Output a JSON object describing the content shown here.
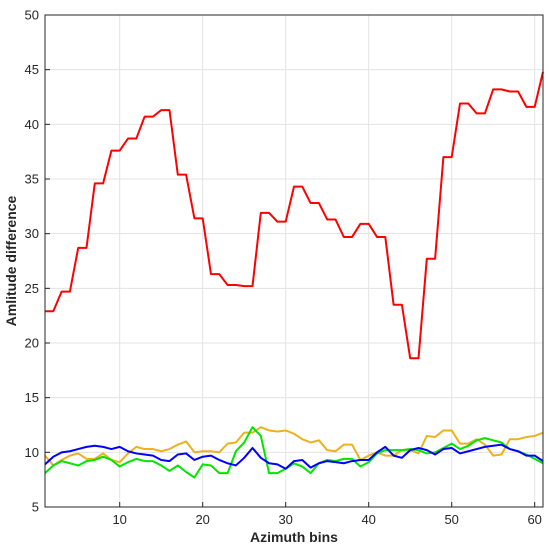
{
  "chart_data": {
    "type": "line",
    "title": "",
    "xlabel": "Azimuth bins",
    "ylabel": "Amlitude difference",
    "xlim": [
      1,
      61
    ],
    "ylim": [
      5,
      50
    ],
    "xticks": [
      10,
      20,
      30,
      40,
      50,
      60
    ],
    "yticks": [
      5,
      10,
      15,
      20,
      25,
      30,
      35,
      40,
      45,
      50
    ],
    "grid": true,
    "legend": "none",
    "x": [
      1,
      2,
      3,
      4,
      5,
      6,
      7,
      8,
      9,
      10,
      11,
      12,
      13,
      14,
      15,
      16,
      17,
      18,
      19,
      20,
      21,
      22,
      23,
      24,
      25,
      26,
      27,
      28,
      29,
      30,
      31,
      32,
      33,
      34,
      35,
      36,
      37,
      38,
      39,
      40,
      41,
      42,
      43,
      44,
      45,
      46,
      47,
      48,
      49,
      50,
      51,
      52,
      53,
      54,
      55,
      56,
      57,
      58,
      59,
      60,
      61
    ],
    "series": [
      {
        "color": "#ff0000",
        "values": [
          22.9,
          22.9,
          24.7,
          24.7,
          28.7,
          28.7,
          34.6,
          34.6,
          37.6,
          37.6,
          38.7,
          38.7,
          40.7,
          40.7,
          41.3,
          41.3,
          35.4,
          35.4,
          31.4,
          31.4,
          26.3,
          26.3,
          25.3,
          25.3,
          25.2,
          25.2,
          31.9,
          31.9,
          31.1,
          31.1,
          34.3,
          34.3,
          32.8,
          32.8,
          31.3,
          31.3,
          29.7,
          29.7,
          30.9,
          30.9,
          29.7,
          29.7,
          23.5,
          23.5,
          18.6,
          18.6,
          27.7,
          27.7,
          37.0,
          37.0,
          41.9,
          41.9,
          41.0,
          41.0,
          43.2,
          43.2,
          43.0,
          43.0,
          41.6,
          41.6,
          44.8
        ]
      },
      {
        "color": "#edb120",
        "values": [
          9.7,
          8.8,
          9.3,
          9.7,
          9.9,
          9.4,
          9.4,
          9.9,
          9.3,
          9.1,
          9.9,
          10.5,
          10.3,
          10.3,
          10.1,
          10.3,
          10.7,
          11.0,
          10.0,
          10.1,
          10.1,
          10.0,
          10.8,
          10.9,
          11.8,
          11.8,
          12.3,
          12.0,
          11.9,
          12.0,
          11.7,
          11.2,
          10.9,
          11.1,
          10.2,
          10.1,
          10.7,
          10.7,
          9.3,
          9.7,
          10.0,
          9.7,
          9.7,
          10.2,
          10.2,
          9.9,
          11.5,
          11.4,
          12.0,
          12.0,
          10.8,
          10.8,
          11.2,
          10.7,
          9.7,
          9.8,
          11.2,
          11.2,
          11.4,
          11.5,
          11.8
        ]
      },
      {
        "color": "#00e600",
        "values": [
          8.1,
          8.8,
          9.2,
          9.0,
          8.8,
          9.2,
          9.3,
          9.6,
          9.3,
          8.7,
          9.1,
          9.4,
          9.2,
          9.2,
          8.8,
          8.3,
          8.8,
          8.2,
          7.7,
          8.9,
          8.8,
          8.1,
          8.1,
          10.1,
          10.9,
          12.3,
          11.5,
          8.1,
          8.1,
          8.5,
          9.0,
          8.7,
          8.1,
          9.0,
          9.3,
          9.2,
          9.4,
          9.4,
          8.7,
          9.1,
          9.9,
          10.2,
          10.2,
          10.2,
          10.3,
          10.2,
          9.9,
          10.0,
          10.4,
          10.8,
          10.3,
          10.6,
          11.1,
          11.3,
          11.1,
          10.9,
          10.3,
          10.1,
          9.8,
          9.4,
          9.0
        ]
      },
      {
        "color": "#0000ff",
        "values": [
          8.9,
          9.6,
          10.0,
          10.1,
          10.3,
          10.5,
          10.6,
          10.5,
          10.3,
          10.5,
          10.1,
          9.9,
          9.8,
          9.7,
          9.3,
          9.2,
          9.8,
          9.9,
          9.3,
          9.6,
          9.7,
          9.3,
          9.0,
          8.8,
          9.5,
          10.4,
          9.5,
          9.0,
          8.9,
          8.5,
          9.2,
          9.3,
          8.6,
          9.0,
          9.2,
          9.1,
          9.0,
          9.2,
          9.3,
          9.3,
          10.0,
          10.5,
          9.7,
          9.5,
          10.2,
          10.4,
          10.2,
          9.8,
          10.3,
          10.4,
          9.9,
          10.1,
          10.3,
          10.5,
          10.6,
          10.7,
          10.3,
          10.1,
          9.7,
          9.7,
          9.2
        ]
      }
    ]
  }
}
